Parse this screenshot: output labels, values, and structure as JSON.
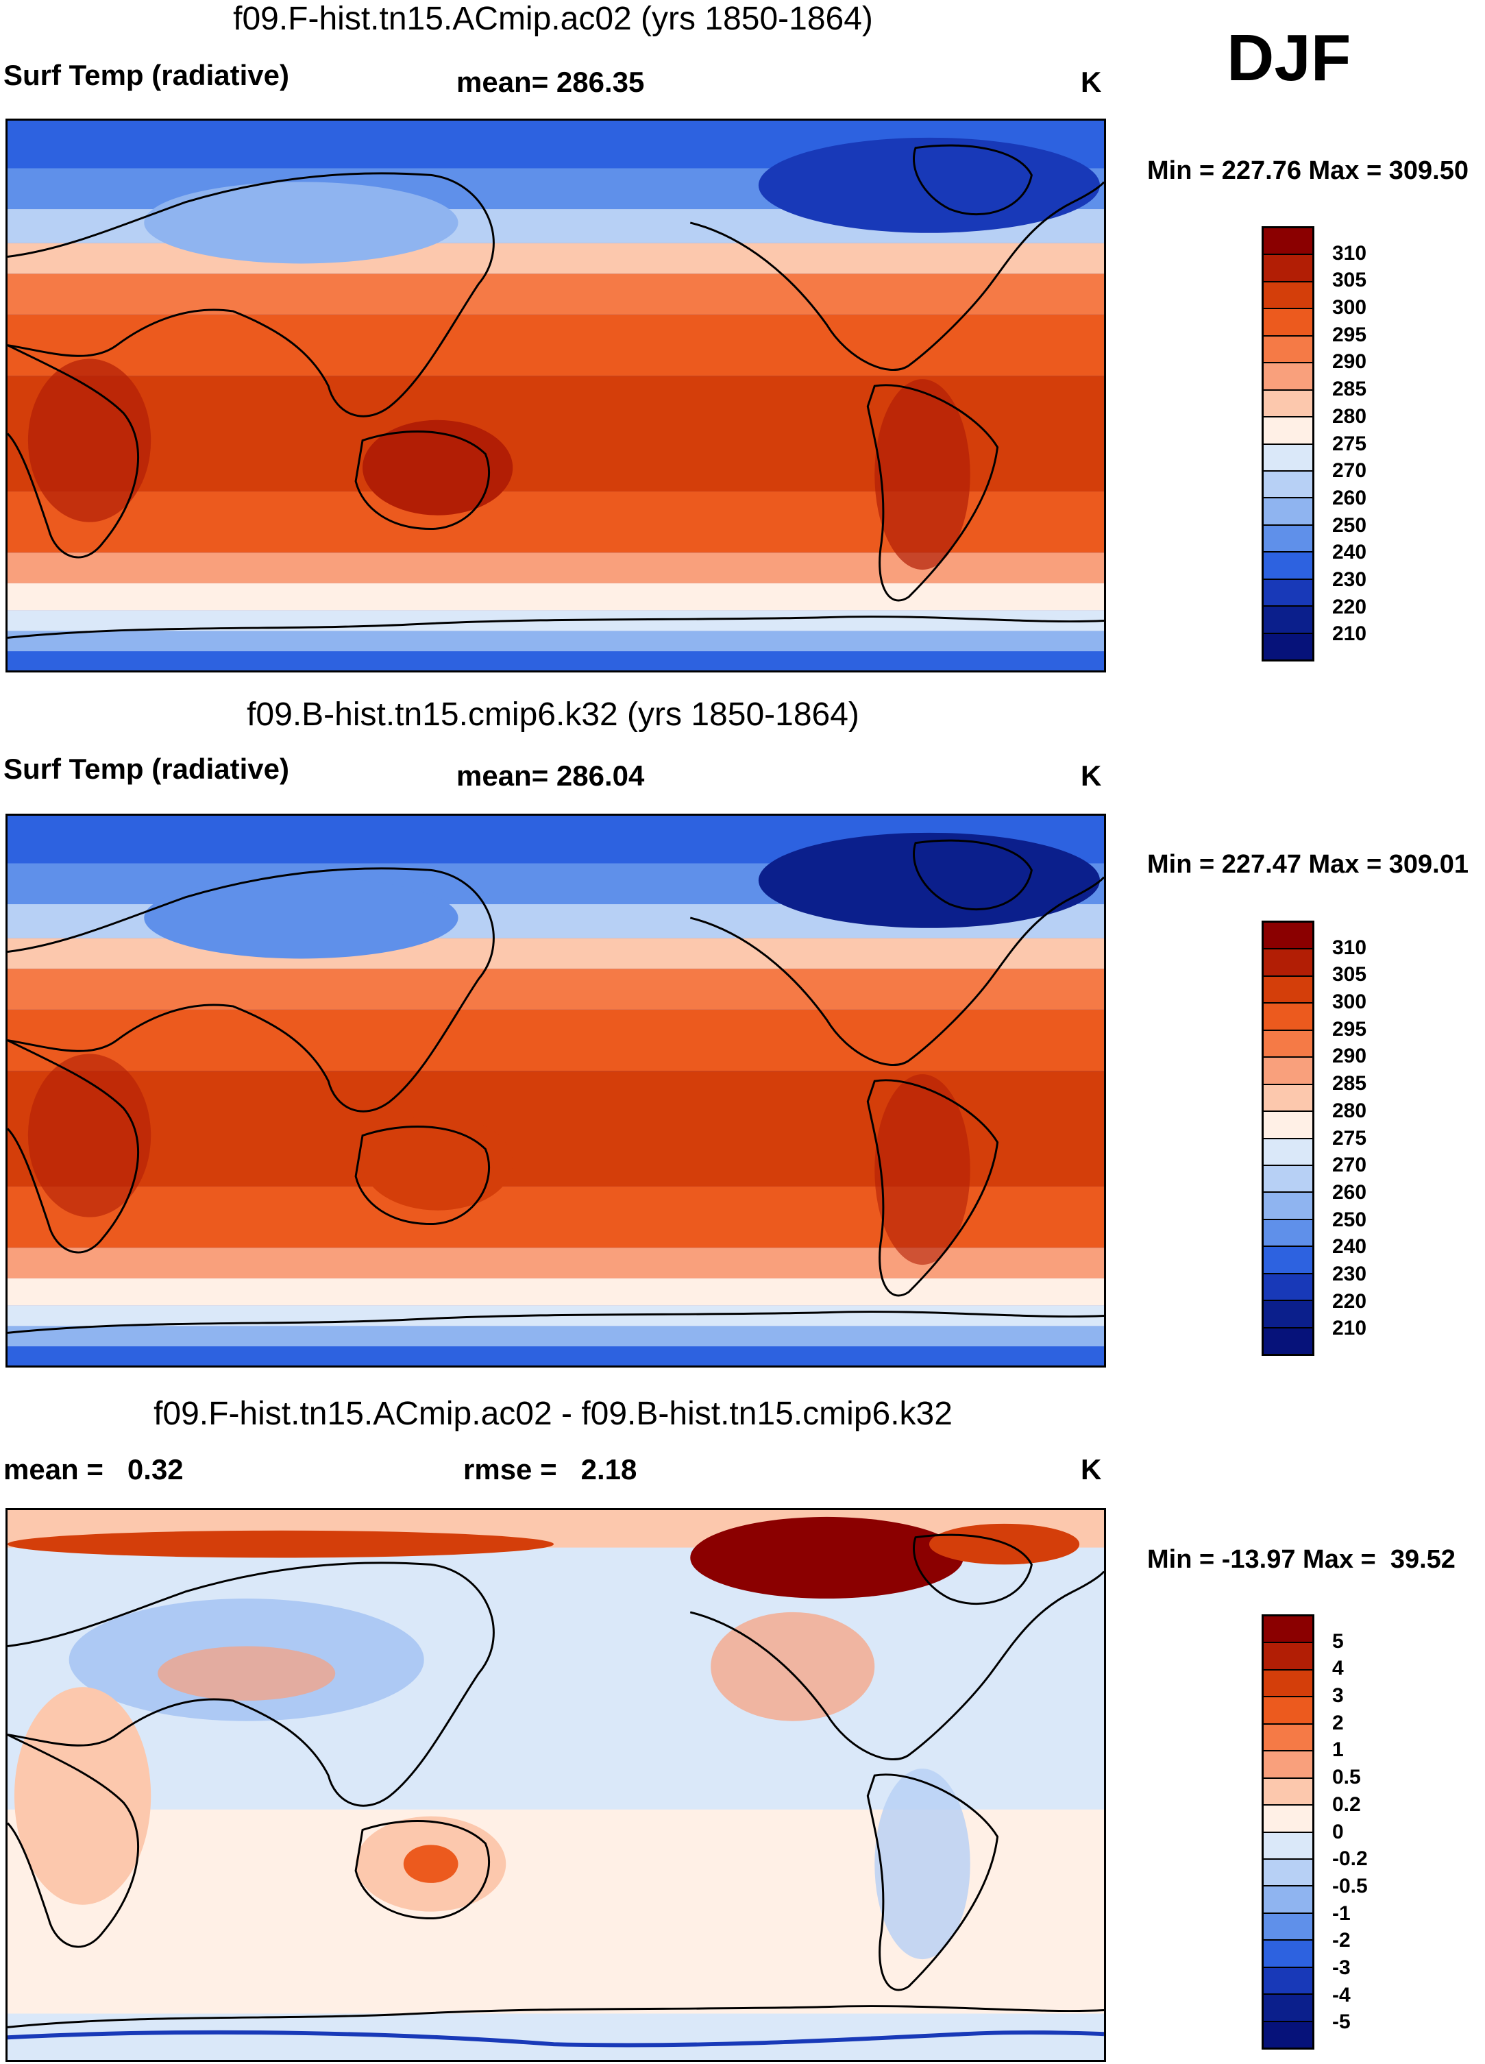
{
  "season": "DJF",
  "panels": [
    {
      "title": "f09.F-hist.tn15.ACmip.ac02 (yrs 1850-1864)",
      "left_label": "Surf Temp (radiative)",
      "mid_label": "mean= 286.35",
      "units": "K",
      "minmax": "Min = 227.76 Max = 309.50",
      "colorbar": {
        "labels": [
          "310",
          "305",
          "300",
          "295",
          "290",
          "285",
          "280",
          "275",
          "270",
          "260",
          "250",
          "240",
          "230",
          "220",
          "210"
        ],
        "colors": [
          "#8b0000",
          "#b21e05",
          "#d43e0a",
          "#ec5a1e",
          "#f57a46",
          "#f9a07c",
          "#fcc8ad",
          "#fff0e6",
          "#dae8f9",
          "#b7d0f5",
          "#8fb4f0",
          "#5f90ea",
          "#2d62e0",
          "#1839b8",
          "#0b1f8c",
          "#06127a"
        ]
      }
    },
    {
      "title": "f09.B-hist.tn15.cmip6.k32 (yrs 1850-1864)",
      "left_label": "Surf Temp (radiative)",
      "mid_label": "mean= 286.04",
      "units": "K",
      "minmax": "Min = 227.47 Max = 309.01",
      "colorbar": {
        "labels": [
          "310",
          "305",
          "300",
          "295",
          "290",
          "285",
          "280",
          "275",
          "270",
          "260",
          "250",
          "240",
          "230",
          "220",
          "210"
        ],
        "colors": [
          "#8b0000",
          "#b21e05",
          "#d43e0a",
          "#ec5a1e",
          "#f57a46",
          "#f9a07c",
          "#fcc8ad",
          "#fff0e6",
          "#dae8f9",
          "#b7d0f5",
          "#8fb4f0",
          "#5f90ea",
          "#2d62e0",
          "#1839b8",
          "#0b1f8c",
          "#06127a"
        ]
      }
    },
    {
      "title": "f09.F-hist.tn15.ACmip.ac02 - f09.B-hist.tn15.cmip6.k32",
      "left_label": "mean =   0.32",
      "mid_label": "rmse =   2.18",
      "units": "K",
      "minmax": "Min = -13.97 Max =  39.52",
      "colorbar": {
        "labels": [
          "5",
          "4",
          "3",
          "2",
          "1",
          "0.5",
          "0.2",
          "0",
          "-0.2",
          "-0.5",
          "-1",
          "-2",
          "-3",
          "-4",
          "-5"
        ],
        "colors": [
          "#8b0000",
          "#b21e05",
          "#d43e0a",
          "#ec5a1e",
          "#f57a46",
          "#f9a07c",
          "#fcc8ad",
          "#fff0e6",
          "#dae8f9",
          "#b7d0f5",
          "#8fb4f0",
          "#5f90ea",
          "#2d62e0",
          "#1839b8",
          "#0b1f8c",
          "#06127a"
        ]
      }
    }
  ]
}
